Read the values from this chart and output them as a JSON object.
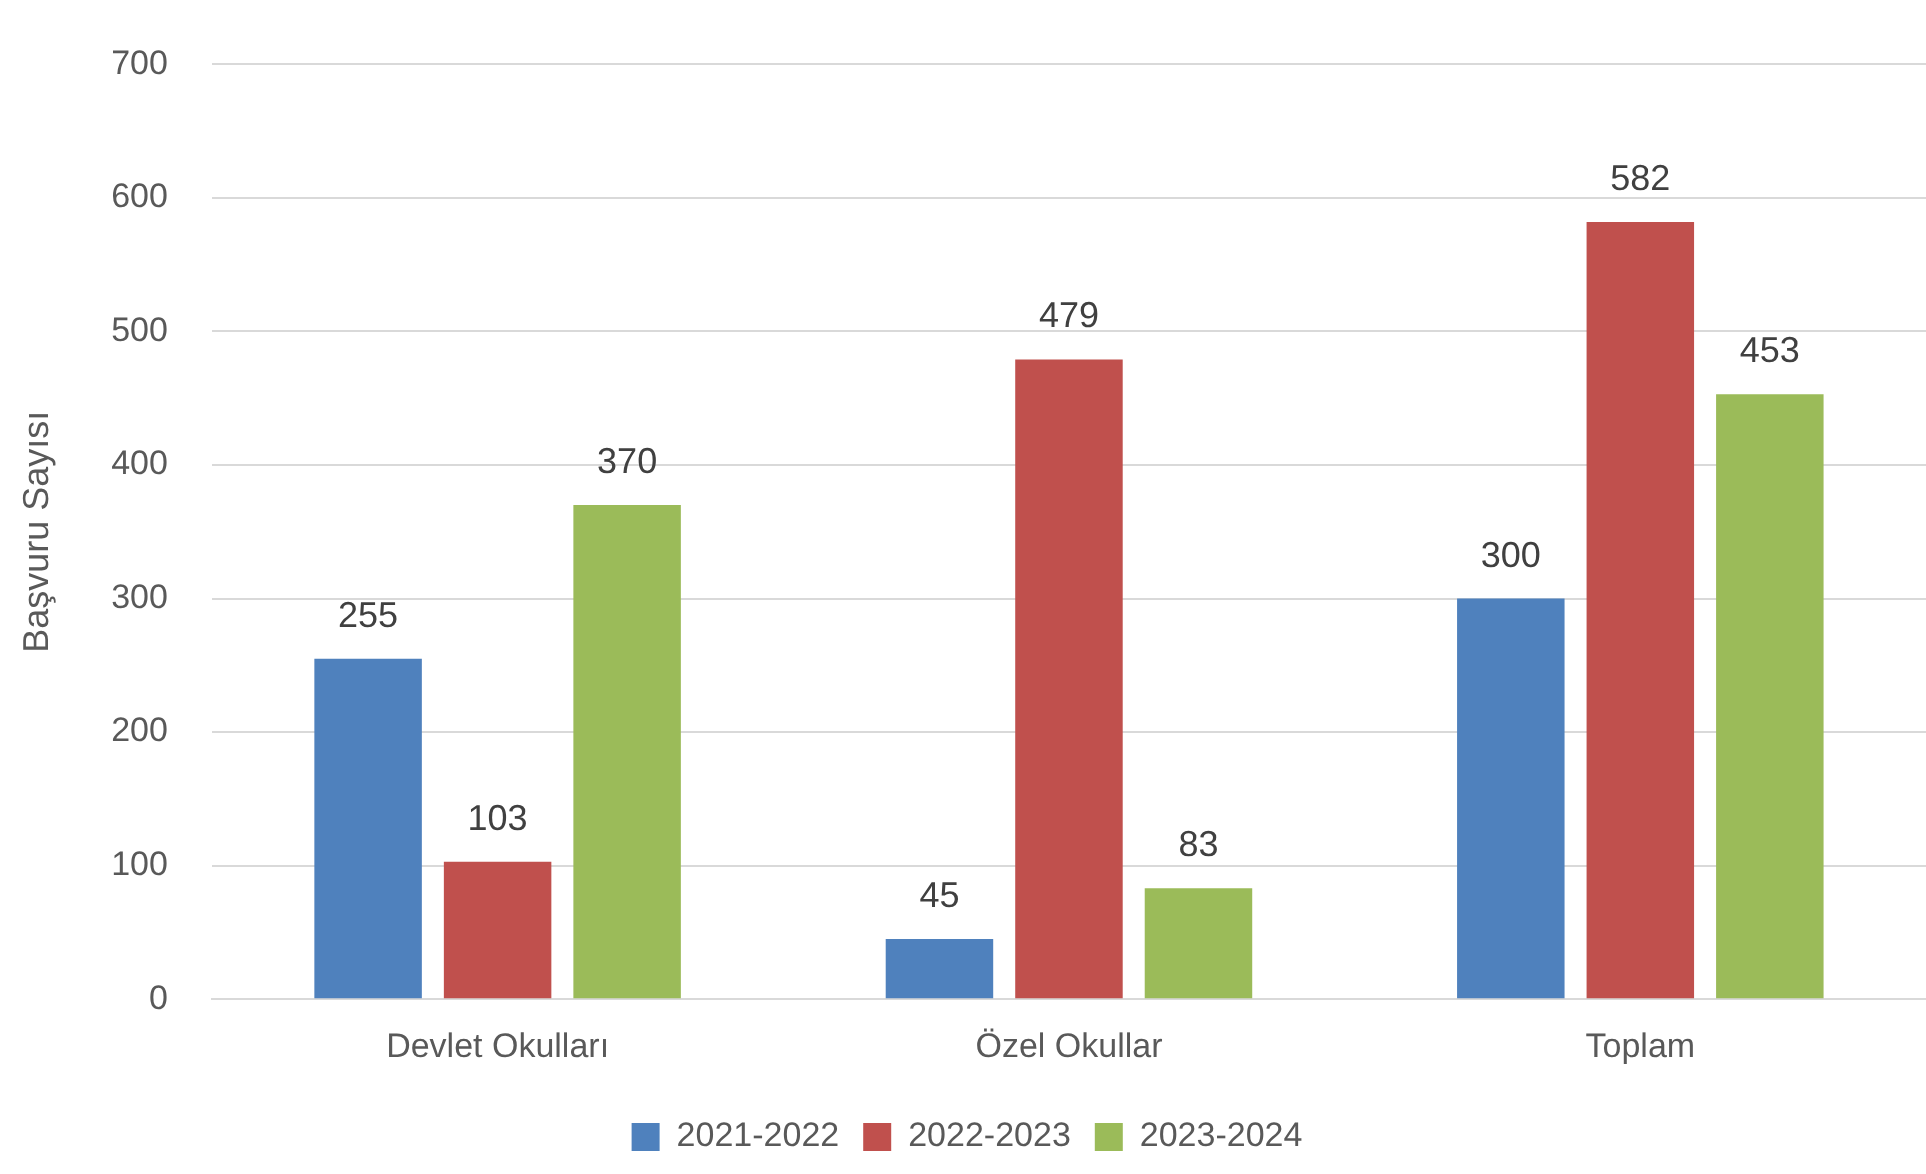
{
  "chart_data": {
    "type": "bar",
    "ylabel": "Başvuru Sayısı",
    "categories": [
      "Devlet Okulları",
      "Özel Okullar",
      "Toplam"
    ],
    "series": [
      {
        "name": "2021-2022",
        "color": "#4f81bd",
        "values": [
          255,
          45,
          300
        ]
      },
      {
        "name": "2022-2023",
        "color": "#c0504d",
        "values": [
          103,
          479,
          582
        ]
      },
      {
        "name": "2023-2024",
        "color": "#9bbb59",
        "values": [
          370,
          83,
          453
        ]
      }
    ],
    "ylim": [
      0,
      700
    ],
    "yticks": [
      0,
      100,
      200,
      300,
      400,
      500,
      600,
      700
    ],
    "grid": "y",
    "legend": "bottom",
    "data_labels": true
  }
}
